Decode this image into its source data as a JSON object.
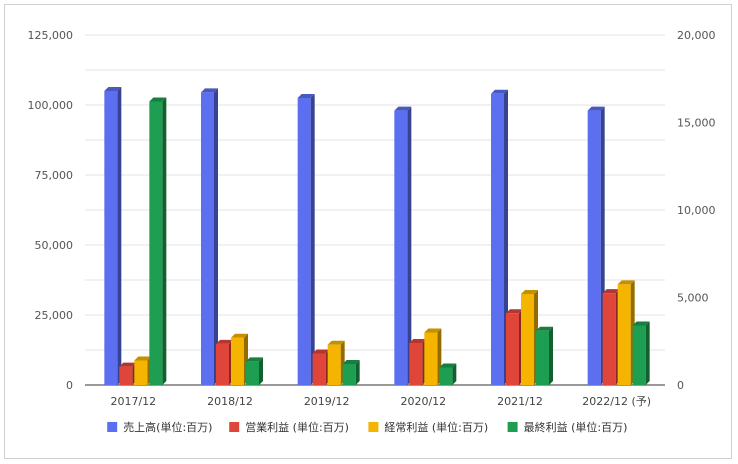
{
  "chart_data": {
    "type": "bar",
    "categories": [
      "2017/12",
      "2018/12",
      "2019/12",
      "2020/12",
      "2021/12",
      "2022/12 (予)"
    ],
    "series": [
      {
        "name": "売上高(単位:百万)",
        "axis": "left",
        "color": "#5b6ff0",
        "values": [
          105000,
          104500,
          102500,
          98000,
          104000,
          98000
        ]
      },
      {
        "name": "営業利益 (単位:百万)",
        "axis": "right",
        "color": "#e0453a",
        "values": [
          1050,
          2350,
          1800,
          2400,
          4100,
          5250
        ]
      },
      {
        "name": "経常利益 (単位:百万)",
        "axis": "right",
        "color": "#f4b400",
        "values": [
          1400,
          2700,
          2300,
          3000,
          5200,
          5750
        ]
      },
      {
        "name": "最終利益 (単位:百万)",
        "axis": "right",
        "color": "#1e9e50",
        "values": [
          16200,
          1350,
          1200,
          1000,
          3100,
          3400
        ]
      }
    ],
    "y_left": {
      "ylim": [
        0,
        125000
      ],
      "ticks": [
        "0",
        "25,000",
        "50,000",
        "75,000",
        "100,000",
        "125,000"
      ]
    },
    "y_right": {
      "ylim": [
        0,
        20000
      ],
      "ticks": [
        "0",
        "5,000",
        "10,000",
        "15,000",
        "20,000"
      ]
    },
    "grid": true,
    "legend": "bottom"
  }
}
